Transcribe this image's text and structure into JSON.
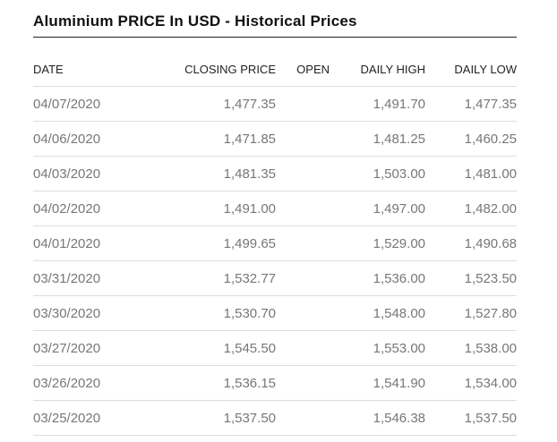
{
  "title": "Aluminium PRICE In USD - Historical Prices",
  "columns": [
    "DATE",
    "CLOSING PRICE",
    "OPEN",
    "DAILY HIGH",
    "DAILY LOW"
  ],
  "rows": [
    [
      "04/07/2020",
      "1,477.35",
      "",
      "1,491.70",
      "1,477.35"
    ],
    [
      "04/06/2020",
      "1,471.85",
      "",
      "1,481.25",
      "1,460.25"
    ],
    [
      "04/03/2020",
      "1,481.35",
      "",
      "1,503.00",
      "1,481.00"
    ],
    [
      "04/02/2020",
      "1,491.00",
      "",
      "1,497.00",
      "1,482.00"
    ],
    [
      "04/01/2020",
      "1,499.65",
      "",
      "1,529.00",
      "1,490.68"
    ],
    [
      "03/31/2020",
      "1,532.77",
      "",
      "1,536.00",
      "1,523.50"
    ],
    [
      "03/30/2020",
      "1,530.70",
      "",
      "1,548.00",
      "1,527.80"
    ],
    [
      "03/27/2020",
      "1,545.50",
      "",
      "1,553.00",
      "1,538.00"
    ],
    [
      "03/26/2020",
      "1,536.15",
      "",
      "1,541.90",
      "1,534.00"
    ],
    [
      "03/25/2020",
      "1,537.50",
      "",
      "1,546.38",
      "1,537.50"
    ]
  ]
}
